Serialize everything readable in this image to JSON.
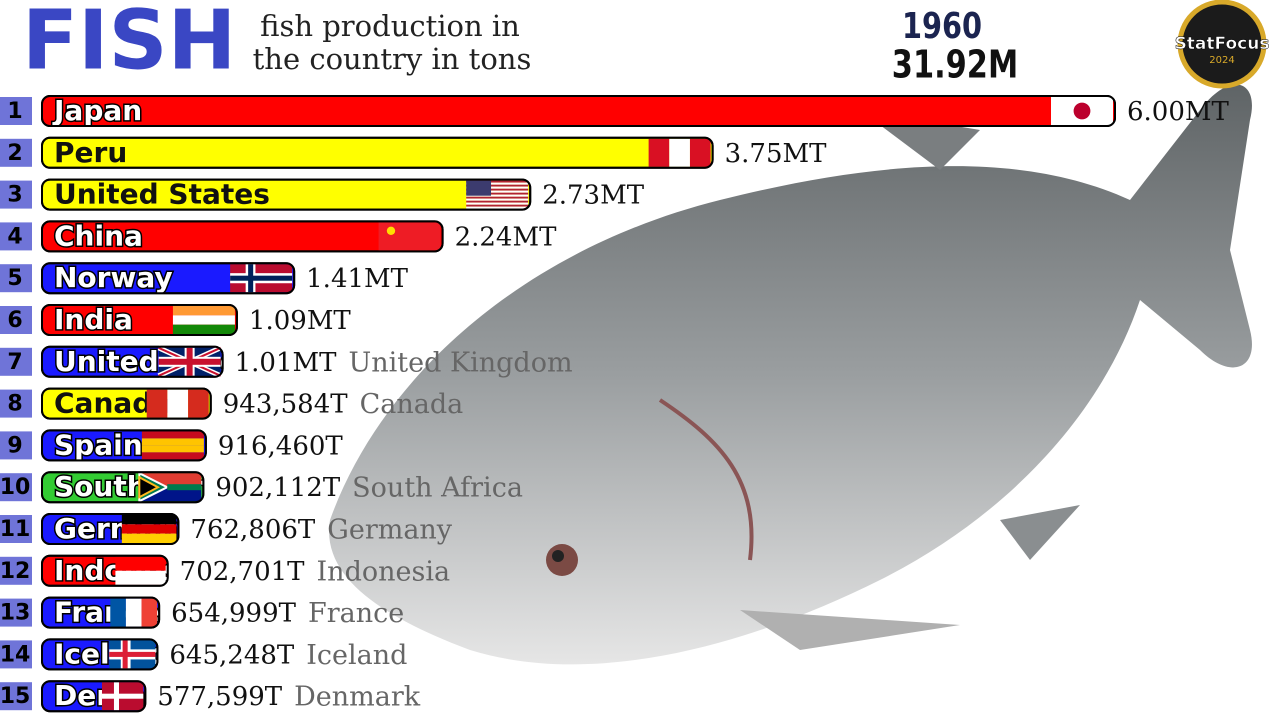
{
  "chart_data": {
    "type": "bar",
    "title": "FISH",
    "subtitle": [
      "fish production in",
      "the country in tons"
    ],
    "year": "1960",
    "total": "31.92M",
    "logo": [
      "StatFocus",
      "2024"
    ],
    "ranks": [
      "1",
      "2",
      "3",
      "4",
      "5",
      "6",
      "7",
      "8",
      "9",
      "10",
      "11",
      "12",
      "13",
      "14",
      "15"
    ],
    "categories": [
      "Japan",
      "Peru",
      "United States",
      "China",
      "Norway",
      "India",
      "United Kingdom",
      "Canada",
      "Spain",
      "South Africa",
      "Germany",
      "Indonesia",
      "France",
      "Iceland",
      "Denmark"
    ],
    "values": [
      6000000,
      3750000,
      2730000,
      2240000,
      1410000,
      1090000,
      1010000,
      943584,
      916460,
      902112,
      762806,
      702701,
      654999,
      645248,
      577599
    ],
    "value_labels": [
      "6.00MT",
      "3.75MT",
      "2.73MT",
      "2.24MT",
      "1.41MT",
      "1.09MT",
      "1.01MT",
      "943,584T",
      "916,460T",
      "902,112T",
      "762,806T",
      "702,701T",
      "654,999T",
      "645,248T",
      "577,599T"
    ],
    "colors": [
      "#ff0000",
      "#ffff00",
      "#ffff00",
      "#ff0000",
      "#1a1aff",
      "#ff0000",
      "#1a1aff",
      "#ffff00",
      "#1a1aff",
      "#33cc33",
      "#1a1aff",
      "#ff0000",
      "#1a1aff",
      "#1a1aff",
      "#1a1aff"
    ]
  }
}
